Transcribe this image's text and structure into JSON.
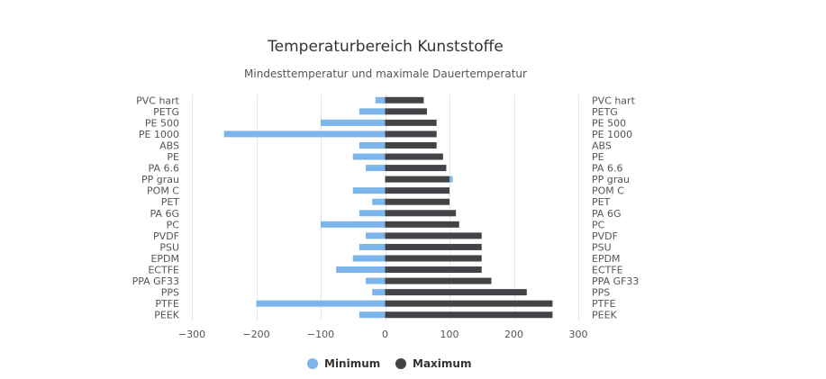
{
  "chart_data": {
    "type": "bar",
    "orientation": "horizontal",
    "title": "Temperaturbereich Kunststoffe",
    "subtitle": "Mindesttemperatur und maximale Dauertemperatur",
    "categories": [
      "PVC hart",
      "PETG",
      "PE 500",
      "PE 1000",
      "ABS",
      "PE",
      "PA 6.6",
      "PP grau",
      "POM C",
      "PET",
      "PA 6G",
      "PC",
      "PVDF",
      "PSU",
      "EPDM",
      "ECTFE",
      "PPA GF33",
      "PPS",
      "PTFE",
      "PEEK"
    ],
    "series": [
      {
        "name": "Minimum",
        "color": "#7cb5ec",
        "values": [
          -15,
          -40,
          -100,
          -250,
          -40,
          -50,
          -30,
          5,
          -50,
          -20,
          -40,
          -100,
          -30,
          -40,
          -50,
          -76,
          -30,
          -20,
          -200,
          -40
        ]
      },
      {
        "name": "Maximum",
        "color": "#434348",
        "values": [
          60,
          65,
          80,
          80,
          80,
          90,
          95,
          100,
          100,
          100,
          110,
          115,
          150,
          150,
          150,
          150,
          165,
          220,
          260,
          260
        ]
      }
    ],
    "xlim": [
      -300,
      300
    ],
    "xticks": [
      -300,
      -200,
      -100,
      0,
      100,
      200,
      300
    ],
    "xtick_labels": [
      "−300",
      "−200",
      "−100",
      "0",
      "100",
      "200",
      "300"
    ],
    "grid": true,
    "legend_position": "bottom-center",
    "category_labels_both_sides": true
  }
}
